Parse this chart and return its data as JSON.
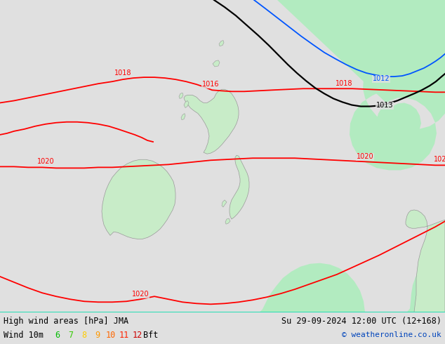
{
  "title_left": "High wind areas [hPa] JMA",
  "title_right": "Su 29-09-2024 12:00 UTC (12+168)",
  "subtitle_left": "Wind 10m",
  "subtitle_right": "© weatheronline.co.uk",
  "wind_bft_nums": [
    "6",
    "7",
    "8",
    "9",
    "10",
    "11",
    "12"
  ],
  "wind_bft_colors": [
    "#00bb00",
    "#33cc00",
    "#ffcc00",
    "#ff9900",
    "#ff6600",
    "#ff2200",
    "#cc0000"
  ],
  "bg_color": "#e0e0e0",
  "land_color": "#c8ecc8",
  "isobar_red_color": "#ff0000",
  "isobar_black_color": "#000000",
  "isobar_blue_color": "#0055ff",
  "highlight_green": "#aaeebb",
  "fig_width": 6.34,
  "fig_height": 4.9,
  "dpi": 100
}
